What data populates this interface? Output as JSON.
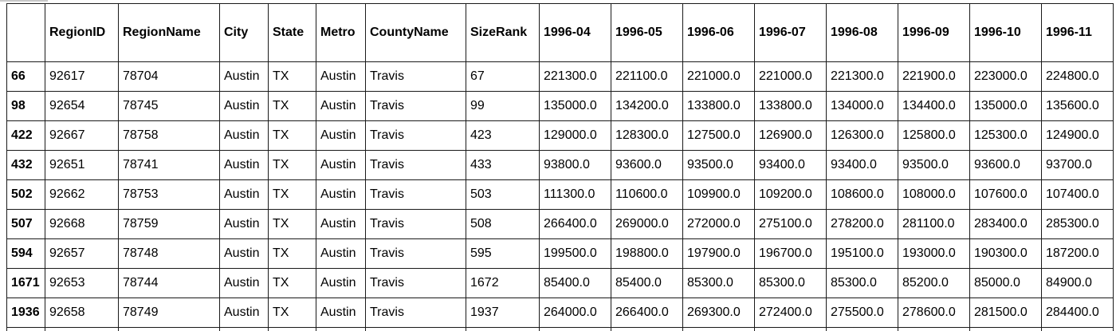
{
  "table": {
    "columns": [
      "",
      "RegionID",
      "RegionName",
      "City",
      "State",
      "Metro",
      "CountyName",
      "SizeRank",
      "1996-04",
      "1996-05",
      "1996-06",
      "1996-07",
      "1996-08",
      "1996-09",
      "1996-10",
      "1996-11"
    ],
    "rows": [
      {
        "index": "66",
        "cells": [
          "92617",
          "78704",
          "Austin",
          "TX",
          "Austin",
          "Travis",
          "67",
          "221300.0",
          "221100.0",
          "221000.0",
          "221000.0",
          "221300.0",
          "221900.0",
          "223000.0",
          "224800.0"
        ]
      },
      {
        "index": "98",
        "cells": [
          "92654",
          "78745",
          "Austin",
          "TX",
          "Austin",
          "Travis",
          "99",
          "135000.0",
          "134200.0",
          "133800.0",
          "133800.0",
          "134000.0",
          "134400.0",
          "135000.0",
          "135600.0"
        ]
      },
      {
        "index": "422",
        "cells": [
          "92667",
          "78758",
          "Austin",
          "TX",
          "Austin",
          "Travis",
          "423",
          "129000.0",
          "128300.0",
          "127500.0",
          "126900.0",
          "126300.0",
          "125800.0",
          "125300.0",
          "124900.0"
        ]
      },
      {
        "index": "432",
        "cells": [
          "92651",
          "78741",
          "Austin",
          "TX",
          "Austin",
          "Travis",
          "433",
          "93800.0",
          "93600.0",
          "93500.0",
          "93400.0",
          "93400.0",
          "93500.0",
          "93600.0",
          "93700.0"
        ]
      },
      {
        "index": "502",
        "cells": [
          "92662",
          "78753",
          "Austin",
          "TX",
          "Austin",
          "Travis",
          "503",
          "111300.0",
          "110600.0",
          "109900.0",
          "109200.0",
          "108600.0",
          "108000.0",
          "107600.0",
          "107400.0"
        ]
      },
      {
        "index": "507",
        "cells": [
          "92668",
          "78759",
          "Austin",
          "TX",
          "Austin",
          "Travis",
          "508",
          "266400.0",
          "269000.0",
          "272000.0",
          "275100.0",
          "278200.0",
          "281100.0",
          "283400.0",
          "285300.0"
        ]
      },
      {
        "index": "594",
        "cells": [
          "92657",
          "78748",
          "Austin",
          "TX",
          "Austin",
          "Travis",
          "595",
          "199500.0",
          "198800.0",
          "197900.0",
          "196700.0",
          "195100.0",
          "193000.0",
          "190300.0",
          "187200.0"
        ]
      },
      {
        "index": "1671",
        "cells": [
          "92653",
          "78744",
          "Austin",
          "TX",
          "Austin",
          "Travis",
          "1672",
          "85400.0",
          "85400.0",
          "85300.0",
          "85300.0",
          "85300.0",
          "85200.0",
          "85000.0",
          "84900.0"
        ]
      },
      {
        "index": "1936",
        "cells": [
          "92658",
          "78749",
          "Austin",
          "TX",
          "Austin",
          "Travis",
          "1937",
          "264000.0",
          "266400.0",
          "269300.0",
          "272400.0",
          "275500.0",
          "278600.0",
          "281500.0",
          "284400.0"
        ]
      }
    ]
  }
}
